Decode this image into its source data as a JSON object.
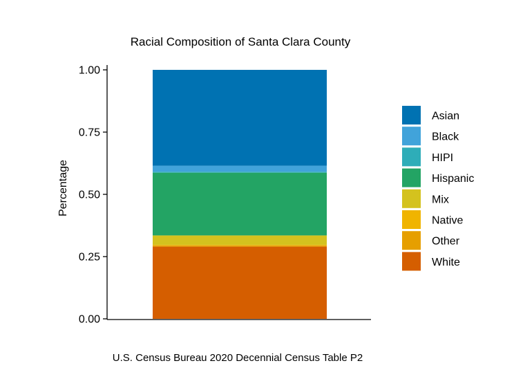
{
  "chart_data": {
    "type": "bar",
    "stacked": true,
    "title": "Racial Composition of Santa Clara County",
    "xlabel": "",
    "ylabel": "Percentage",
    "caption": "U.S. Census Bureau 2020 Decennial Census Table P2",
    "ylim": [
      0,
      1
    ],
    "yticks": [
      0,
      0.25,
      0.5,
      0.75,
      1
    ],
    "ytick_labels": [
      "0.00",
      "0.25",
      "0.50",
      "0.75",
      "1.00"
    ],
    "categories": [
      ""
    ],
    "grid": false,
    "legend_position": "right",
    "series": [
      {
        "name": "White",
        "color": "#D55E00",
        "values": [
          0.29
        ]
      },
      {
        "name": "Other",
        "color": "#E69F00",
        "values": [
          0.005
        ]
      },
      {
        "name": "Native",
        "color": "#F0B400",
        "values": [
          0.002
        ]
      },
      {
        "name": "Mix",
        "color": "#D4C21E",
        "values": [
          0.038
        ]
      },
      {
        "name": "Hispanic",
        "color": "#23A464",
        "values": [
          0.252
        ]
      },
      {
        "name": "HIPI",
        "color": "#2EADB8",
        "values": [
          0.004
        ]
      },
      {
        "name": "Black",
        "color": "#41A3DA",
        "values": [
          0.024
        ]
      },
      {
        "name": "Asian",
        "color": "#0072B2",
        "values": [
          0.385
        ]
      }
    ],
    "legend_order": [
      "Asian",
      "Black",
      "HIPI",
      "Hispanic",
      "Mix",
      "Native",
      "Other",
      "White"
    ]
  }
}
